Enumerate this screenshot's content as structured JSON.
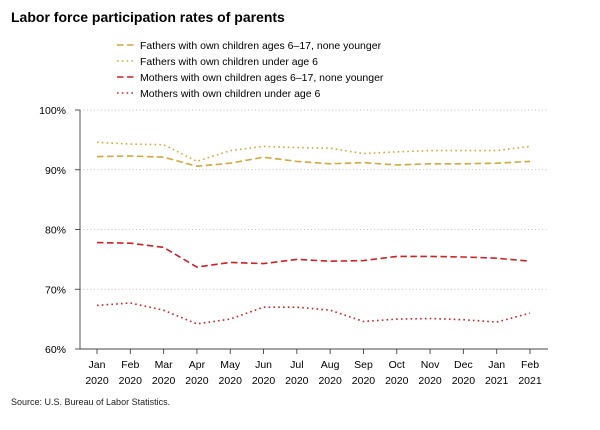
{
  "title": "Labor force participation rates of parents",
  "source": "Source: U.S. Bureau of Labor Statistics.",
  "chart_data": {
    "type": "line",
    "title": "Labor force participation rates of parents",
    "xlabel": "",
    "ylabel": "",
    "ylim": [
      60,
      100
    ],
    "yticks": [
      60,
      70,
      80,
      90,
      100
    ],
    "ytick_labels": [
      "60%",
      "70%",
      "80%",
      "90%",
      "100%"
    ],
    "grid": "horizontal dotted",
    "legend_position": "top",
    "x": [
      [
        "Jan",
        "2020"
      ],
      [
        "Feb",
        "2020"
      ],
      [
        "Mar",
        "2020"
      ],
      [
        "Apr",
        "2020"
      ],
      [
        "May",
        "2020"
      ],
      [
        "Jun",
        "2020"
      ],
      [
        "Jul",
        "2020"
      ],
      [
        "Aug",
        "2020"
      ],
      [
        "Sep",
        "2020"
      ],
      [
        "Oct",
        "2020"
      ],
      [
        "Nov",
        "2020"
      ],
      [
        "Dec",
        "2020"
      ],
      [
        "Jan",
        "2021"
      ],
      [
        "Feb",
        "2021"
      ]
    ],
    "series": [
      {
        "name": "Fathers with own children ages 6–17, none younger",
        "color": "#d4a93a",
        "dash": "dashed",
        "values": [
          92.2,
          92.3,
          92.1,
          90.6,
          91.1,
          92.1,
          91.4,
          91.0,
          91.2,
          90.8,
          91.0,
          91.0,
          91.1,
          91.4
        ]
      },
      {
        "name": "Fathers with own children under age 6",
        "color": "#d4a93a",
        "dash": "dotted",
        "values": [
          94.6,
          94.3,
          94.2,
          91.4,
          93.2,
          93.9,
          93.7,
          93.6,
          92.7,
          93.0,
          93.2,
          93.2,
          93.2,
          93.9
        ]
      },
      {
        "name": "Mothers with own children ages 6–17, none younger",
        "color": "#d01f26",
        "dash": "dashed",
        "values": [
          77.8,
          77.7,
          77.0,
          73.7,
          74.5,
          74.3,
          75.0,
          74.7,
          74.8,
          75.5,
          75.5,
          75.4,
          75.2,
          74.7
        ]
      },
      {
        "name": "Mothers with own children under age 6",
        "color": "#d01f26",
        "dash": "dotted",
        "values": [
          67.3,
          67.7,
          66.5,
          64.2,
          65.0,
          67.0,
          67.0,
          66.5,
          64.6,
          65.0,
          65.1,
          64.9,
          64.5,
          66.0
        ]
      }
    ]
  }
}
